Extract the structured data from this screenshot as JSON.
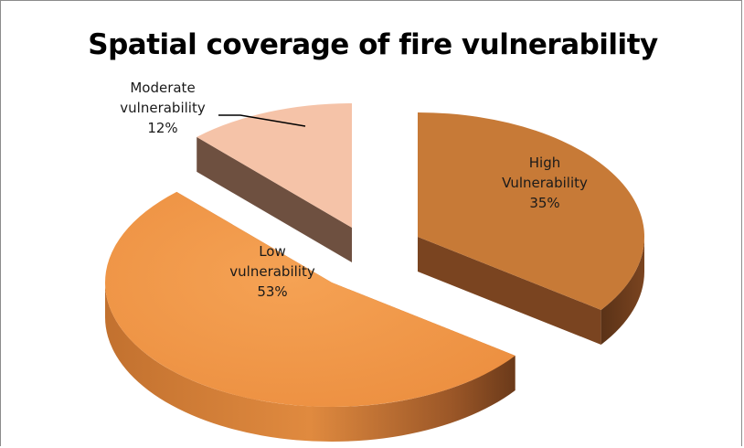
{
  "chart_data": {
    "type": "pie",
    "title": "Spatial coverage of fire vulnerability",
    "slices": [
      {
        "label": "High Vulnerability",
        "label_lines": [
          "High",
          "Vulnerability"
        ],
        "value": 35,
        "value_text": "35%",
        "color": "#c77a37",
        "side_color": "#7a4420",
        "exploded": true
      },
      {
        "label": "Low vulnerability",
        "label_lines": [
          "Low",
          "vulnerability"
        ],
        "value": 53,
        "value_text": "53%",
        "color": "#f0984a",
        "side_color": "#b8682e",
        "exploded": false
      },
      {
        "label": "Moderate vulnerability",
        "label_lines": [
          "Moderate",
          "vulnerability"
        ],
        "value": 12,
        "value_text": "12%",
        "color": "#f5c3a8",
        "side_color": "#6e5040",
        "exploded": true
      }
    ],
    "style": "3d-exploded",
    "legend": "none"
  }
}
